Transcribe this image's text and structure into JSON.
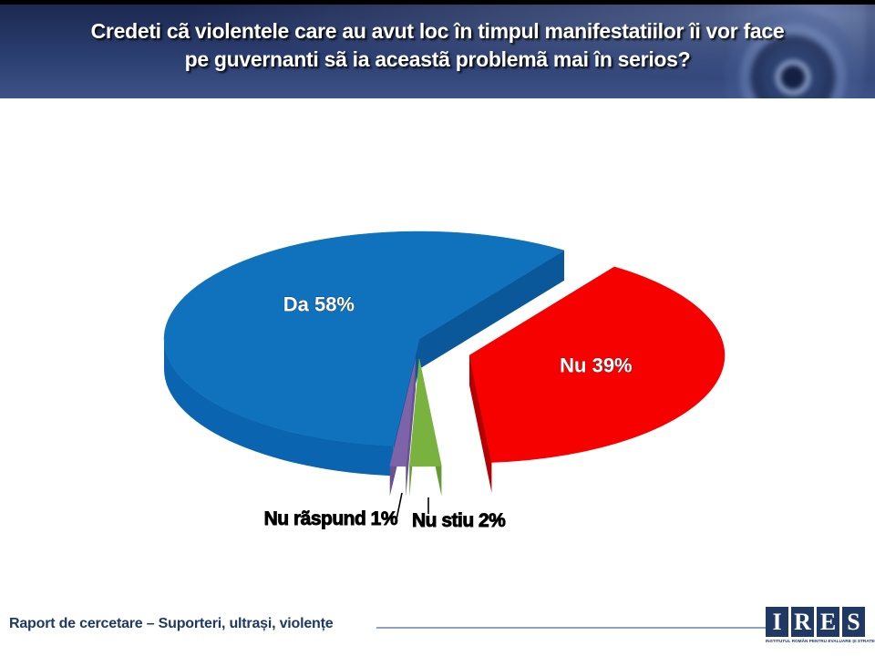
{
  "header": {
    "title_line1": "Credeti cã violentele care au avut loc în timpul manifestatiilor îi vor face",
    "title_line2": "pe guvernanti sã ia aceastã problemã mai în serios?",
    "bg_top_color": "#1c2850",
    "bg_bottom_color": "#3d5288",
    "text_color": "#ffffff"
  },
  "chart_data": {
    "type": "pie",
    "style": "3d-exploded",
    "title": "",
    "legend": "none",
    "unit": "%",
    "categories": [
      "Da",
      "Nu",
      "Nu stiu",
      "Nu rãspund"
    ],
    "values": [
      58,
      39,
      2,
      1
    ],
    "direction": "clockwise",
    "start_angle_deg": 185.8,
    "slices": [
      {
        "label": "Da",
        "value": 58,
        "display": "Da 58%",
        "color": "#1072BC",
        "side_color": "#0A64B0",
        "cut_color": "#0A5899",
        "explode": [
          0,
          0
        ],
        "label_color": "#ffffff",
        "label_style": "inside"
      },
      {
        "label": "Nu",
        "value": 39,
        "display": "Nu 39%",
        "color": "#F60000",
        "side_gradient": [
          "#C60000",
          "#7C0000"
        ],
        "side_color": "#A80000",
        "cut_color": "#B40000",
        "explode": [
          55,
          18
        ],
        "label_color": "#ffffff",
        "label_style": "inside"
      },
      {
        "label": "Nu stiu",
        "value": 2,
        "display": "Nu stiu 2%",
        "color": "#7AB23F",
        "side_color": "#55862D",
        "cut_color": "#639A33",
        "explode": [
          0,
          22
        ],
        "label_color": "#000000",
        "label_style": "callout"
      },
      {
        "label": "Nu rãspund",
        "value": 1,
        "display": "Nu rãspund 1%",
        "color": "#7D63A8",
        "side_color": "#57437D",
        "cut_color": "#6A5292",
        "explode": [
          -4,
          22
        ],
        "label_color": "#000000",
        "label_style": "callout"
      }
    ]
  },
  "footer": {
    "report_label": "Raport de cercetare – Suporteri, ultrași, violențe",
    "report_color": "#1F3864",
    "rule_color": "#8BA2C6",
    "logo": {
      "letters": [
        "I",
        "R",
        "E",
        "S"
      ],
      "subtitle": "INSTITUTUL ROMÂN PENTRU EVALUARE ȘI STRATEGIE",
      "square_color": "#1F3864"
    }
  }
}
